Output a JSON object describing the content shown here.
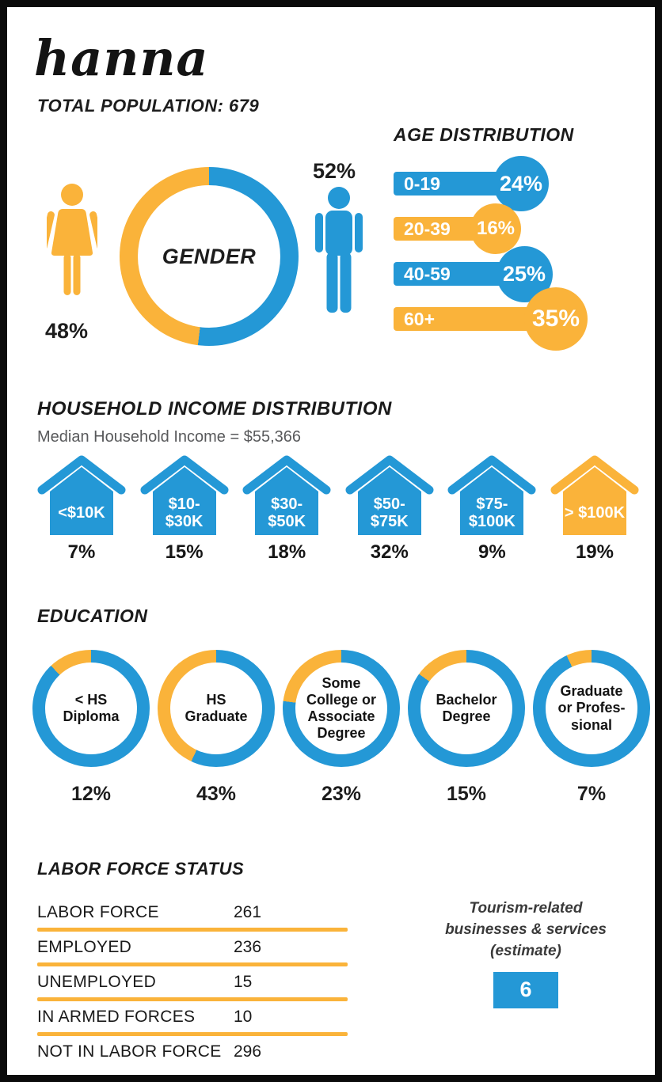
{
  "colors": {
    "blue": "#2498D6",
    "yellow": "#FAB33A"
  },
  "header": {
    "title": "hanna",
    "population_label": "TOTAL POPULATION: 679"
  },
  "gender": {
    "label": "GENDER",
    "female_pct": "48%",
    "female_value": 48,
    "male_pct": "52%",
    "male_value": 52
  },
  "age": {
    "title": "AGE DISTRIBUTION",
    "rows": [
      {
        "label": "0-19",
        "pct": "24%",
        "value": 24,
        "color": "blue"
      },
      {
        "label": "20-39",
        "pct": "16%",
        "value": 16,
        "color": "yellow"
      },
      {
        "label": "40-59",
        "pct": "25%",
        "value": 25,
        "color": "blue"
      },
      {
        "label": "60+",
        "pct": "35%",
        "value": 35,
        "color": "yellow"
      }
    ]
  },
  "income": {
    "title": "HOUSEHOLD INCOME DISTRIBUTION",
    "subtitle": "Median Household Income = $55,366",
    "houses": [
      {
        "label": "<$10K",
        "pct": "7%",
        "value": 7,
        "color": "blue"
      },
      {
        "label": "$10-\n$30K",
        "pct": "15%",
        "value": 15,
        "color": "blue"
      },
      {
        "label": "$30-\n$50K",
        "pct": "18%",
        "value": 18,
        "color": "blue"
      },
      {
        "label": "$50-\n$75K",
        "pct": "32%",
        "value": 32,
        "color": "blue"
      },
      {
        "label": "$75-\n$100K",
        "pct": "9%",
        "value": 9,
        "color": "blue"
      },
      {
        "label": "> $100K",
        "pct": "19%",
        "value": 19,
        "color": "yellow"
      }
    ]
  },
  "education": {
    "title": "EDUCATION",
    "donuts": [
      {
        "label": "< HS\nDiploma",
        "pct": "12%",
        "value": 12
      },
      {
        "label": "HS\nGraduate",
        "pct": "43%",
        "value": 43
      },
      {
        "label": "Some\nCollege or\nAssociate\nDegree",
        "pct": "23%",
        "value": 23
      },
      {
        "label": "Bachelor\nDegree",
        "pct": "15%",
        "value": 15
      },
      {
        "label": "Graduate\nor Profes-\nsional",
        "pct": "7%",
        "value": 7
      }
    ]
  },
  "labor": {
    "title": "LABOR FORCE STATUS",
    "rows": [
      {
        "label": "LABOR FORCE",
        "value": "261"
      },
      {
        "label": "EMPLOYED",
        "value": "236"
      },
      {
        "label": "UNEMPLOYED",
        "value": "15"
      },
      {
        "label": "IN ARMED FORCES",
        "value": "10"
      },
      {
        "label": "NOT IN LABOR FORCE",
        "value": "296"
      }
    ]
  },
  "tourism": {
    "caption": "Tourism-related\nbusinesses & services\n(estimate)",
    "value": "6"
  },
  "chart_data": [
    {
      "type": "pie",
      "title": "GENDER",
      "labels": [
        "Female",
        "Male"
      ],
      "values": [
        48,
        52
      ],
      "unit": "%",
      "colors": [
        "#FAB33A",
        "#2498D6"
      ]
    },
    {
      "type": "bar",
      "title": "AGE DISTRIBUTION",
      "orientation": "horizontal",
      "categories": [
        "0-19",
        "20-39",
        "40-59",
        "60+"
      ],
      "values": [
        24,
        16,
        25,
        35
      ],
      "unit": "%",
      "colors": [
        "#2498D6",
        "#FAB33A",
        "#2498D6",
        "#FAB33A"
      ]
    },
    {
      "type": "bar",
      "title": "HOUSEHOLD INCOME DISTRIBUTION",
      "subtitle": "Median Household Income = $55,366",
      "categories": [
        "<$10K",
        "$10-$30K",
        "$30-$50K",
        "$50-$75K",
        "$75-$100K",
        "> $100K"
      ],
      "values": [
        7,
        15,
        18,
        32,
        9,
        19
      ],
      "unit": "%",
      "colors": [
        "#2498D6",
        "#2498D6",
        "#2498D6",
        "#2498D6",
        "#2498D6",
        "#FAB33A"
      ]
    },
    {
      "type": "pie",
      "title": "EDUCATION",
      "note": "five single-value donut gauges",
      "categories": [
        "< HS Diploma",
        "HS Graduate",
        "Some College or Associate Degree",
        "Bachelor Degree",
        "Graduate or Professional"
      ],
      "values": [
        12,
        43,
        23,
        15,
        7
      ],
      "unit": "%"
    },
    {
      "type": "table",
      "title": "LABOR FORCE STATUS",
      "rows": [
        [
          "LABOR FORCE",
          261
        ],
        [
          "EMPLOYED",
          236
        ],
        [
          "UNEMPLOYED",
          15
        ],
        [
          "IN ARMED FORCES",
          10
        ],
        [
          "NOT IN LABOR FORCE",
          296
        ]
      ]
    },
    {
      "type": "table",
      "title": "Tourism-related businesses & services (estimate)",
      "rows": [
        [
          "Estimate",
          6
        ]
      ]
    }
  ]
}
